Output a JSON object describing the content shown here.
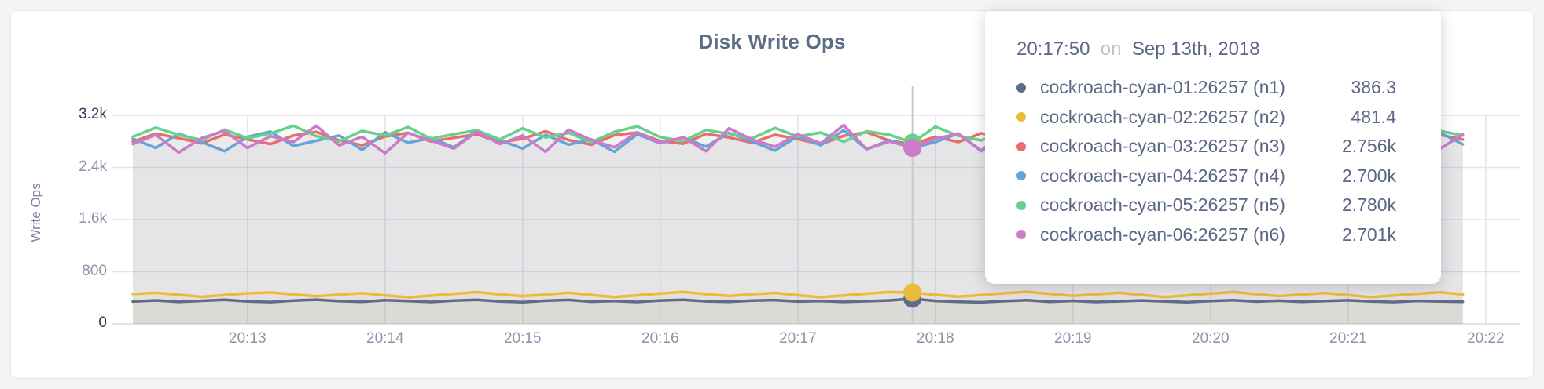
{
  "chart": {
    "title": "Disk Write Ops",
    "ylabel": "Write Ops"
  },
  "tooltip": {
    "time": "20:17:50",
    "conjunction": "on",
    "date": "Sep 13th, 2018",
    "rows": [
      {
        "label": "cockroach-cyan-01:26257 (n1)",
        "value": "386.3",
        "color": "#5f6c87"
      },
      {
        "label": "cockroach-cyan-02:26257 (n2)",
        "value": "481.4",
        "color": "#ecbb3c"
      },
      {
        "label": "cockroach-cyan-03:26257 (n3)",
        "value": "2.756k",
        "color": "#ea6c6c"
      },
      {
        "label": "cockroach-cyan-04:26257 (n4)",
        "value": "2.700k",
        "color": "#63a4d9"
      },
      {
        "label": "cockroach-cyan-05:26257 (n5)",
        "value": "2.780k",
        "color": "#68d08a"
      },
      {
        "label": "cockroach-cyan-06:26257 (n6)",
        "value": "2.701k",
        "color": "#cb7bc7"
      }
    ]
  },
  "chart_data": {
    "type": "line",
    "title": "Disk Write Ops",
    "xlabel": "",
    "ylabel": "Write Ops",
    "ylim": [
      0,
      3200
    ],
    "ytick_values": [
      0,
      800,
      1600,
      2400,
      3200
    ],
    "ytick_labels": [
      "0",
      "800",
      "1.6k",
      "2.4k",
      "3.2k"
    ],
    "xtick_labels": [
      "20:13",
      "20:14",
      "20:15",
      "20:16",
      "20:17",
      "20:18",
      "20:19",
      "20:20",
      "20:21",
      "20:22"
    ],
    "x_origin_time": "20:12:00",
    "first_sample_offset_sec": 10,
    "sample_interval_sec": 10,
    "grid": true,
    "legend_position": "tooltip",
    "hover": {
      "time": "20:17:50",
      "elapsed_sec": 350,
      "values": [
        386.3,
        481.4,
        2756,
        2700,
        2780,
        2701
      ]
    },
    "series": [
      {
        "name": "cockroach-cyan-01:26257 (n1)",
        "color": "#5f6c87",
        "values": [
          344,
          361,
          338,
          355,
          370,
          347,
          336,
          359,
          372,
          350,
          340,
          364,
          351,
          337,
          358,
          369,
          345,
          334,
          356,
          368,
          342,
          353,
          337,
          360,
          371,
          348,
          339,
          357,
          366,
          344,
          352,
          338,
          349,
          361,
          386.3,
          354,
          340,
          332,
          350,
          363,
          341,
          355,
          337,
          348,
          360,
          345,
          334,
          352,
          365,
          343,
          356,
          339,
          351,
          362,
          346,
          336,
          354,
          347,
          341
        ]
      },
      {
        "name": "cockroach-cyan-02:26257 (n2)",
        "color": "#ecbb3c",
        "values": [
          458,
          476,
          449,
          415,
          441,
          469,
          483,
          452,
          424,
          447,
          472,
          438,
          408,
          433,
          461,
          487,
          455,
          426,
          450,
          478,
          444,
          412,
          439,
          467,
          490,
          457,
          428,
          453,
          475,
          440,
          409,
          436,
          464,
          488,
          481.4,
          446,
          417,
          442,
          470,
          492,
          459,
          429,
          454,
          479,
          445,
          413,
          438,
          466,
          489,
          456,
          427,
          451,
          474,
          441,
          410,
          435,
          462,
          486,
          452
        ]
      },
      {
        "name": "cockroach-cyan-03:26257 (n3)",
        "color": "#ea6c6c",
        "values": [
          2795,
          2920,
          2850,
          2770,
          2905,
          2830,
          2760,
          2890,
          2945,
          2815,
          2740,
          2875,
          2930,
          2800,
          2855,
          2910,
          2785,
          2840,
          2955,
          2820,
          2750,
          2895,
          2935,
          2805,
          2765,
          2915,
          2860,
          2780,
          2900,
          2835,
          2755,
          2885,
          2940,
          2810,
          2756,
          2870,
          2790,
          2925,
          2845,
          2775,
          2930,
          2810,
          2745,
          2880,
          2950,
          2825,
          2735,
          2890,
          2915,
          2795,
          2850,
          2960,
          2815,
          2770,
          2905,
          2865,
          2740,
          2900,
          2830
        ]
      },
      {
        "name": "cockroach-cyan-04:26257 (n4)",
        "color": "#63a4d9",
        "values": [
          2840,
          2700,
          2920,
          2790,
          2650,
          2870,
          2950,
          2730,
          2810,
          2890,
          2670,
          2940,
          2780,
          2850,
          2710,
          2960,
          2820,
          2690,
          2900,
          2750,
          2830,
          2640,
          2910,
          2770,
          2860,
          2720,
          2930,
          2800,
          2660,
          2880,
          2740,
          2970,
          2680,
          2820,
          2700,
          2790,
          2920,
          2650,
          2860,
          2730,
          2890,
          2670,
          2940,
          2810,
          2760,
          2950,
          2705,
          2830,
          2610,
          2900,
          2775,
          2845,
          2665,
          2925,
          2785,
          2855,
          2715,
          2935,
          2755
        ]
      },
      {
        "name": "cockroach-cyan-05:26257 (n5)",
        "color": "#68d08a",
        "values": [
          2870,
          3010,
          2900,
          2820,
          2980,
          2850,
          2920,
          3040,
          2880,
          2800,
          2960,
          2890,
          3020,
          2840,
          2910,
          2970,
          2830,
          3000,
          2860,
          2930,
          2790,
          2945,
          3030,
          2865,
          2805,
          2975,
          2915,
          2845,
          3005,
          2875,
          2935,
          2795,
          2955,
          2900,
          2780,
          3025,
          2885,
          2815,
          2965,
          2905,
          2835,
          2995,
          2855,
          2925,
          2785,
          2940,
          3035,
          2895,
          2825,
          2985,
          2870,
          2915,
          2845,
          3015,
          2880,
          2940,
          2800,
          2960,
          2890
        ]
      },
      {
        "name": "cockroach-cyan-06:26257 (n6)",
        "color": "#cb7bc7",
        "values": [
          2760,
          2900,
          2630,
          2850,
          2960,
          2700,
          2880,
          2790,
          3040,
          2740,
          2870,
          2620,
          2930,
          2810,
          2690,
          2950,
          2760,
          2890,
          2640,
          2980,
          2820,
          2710,
          2940,
          2780,
          2860,
          2650,
          3000,
          2830,
          2720,
          2910,
          2770,
          3050,
          2680,
          2800,
          2701,
          2840,
          2920,
          2660,
          2970,
          2750,
          2870,
          2610,
          2990,
          2800,
          2730,
          2900,
          2640,
          2950,
          2790,
          2860,
          2670,
          3020,
          2810,
          2740,
          2930,
          2775,
          2845,
          2685,
          2905
        ]
      }
    ]
  },
  "style": {
    "background": "#f4f4f6",
    "panel_border": "#e6e6e9",
    "grid_color": "#e4e4e8",
    "baseline_color": "#d8d8dc",
    "crosshair_color": "#c9c9ce",
    "title_color": "#5d6d88",
    "tick_color": "#8d94a8",
    "tick_color_strong": "#2f3a56",
    "tooltip_text_color": "#5b6784"
  }
}
